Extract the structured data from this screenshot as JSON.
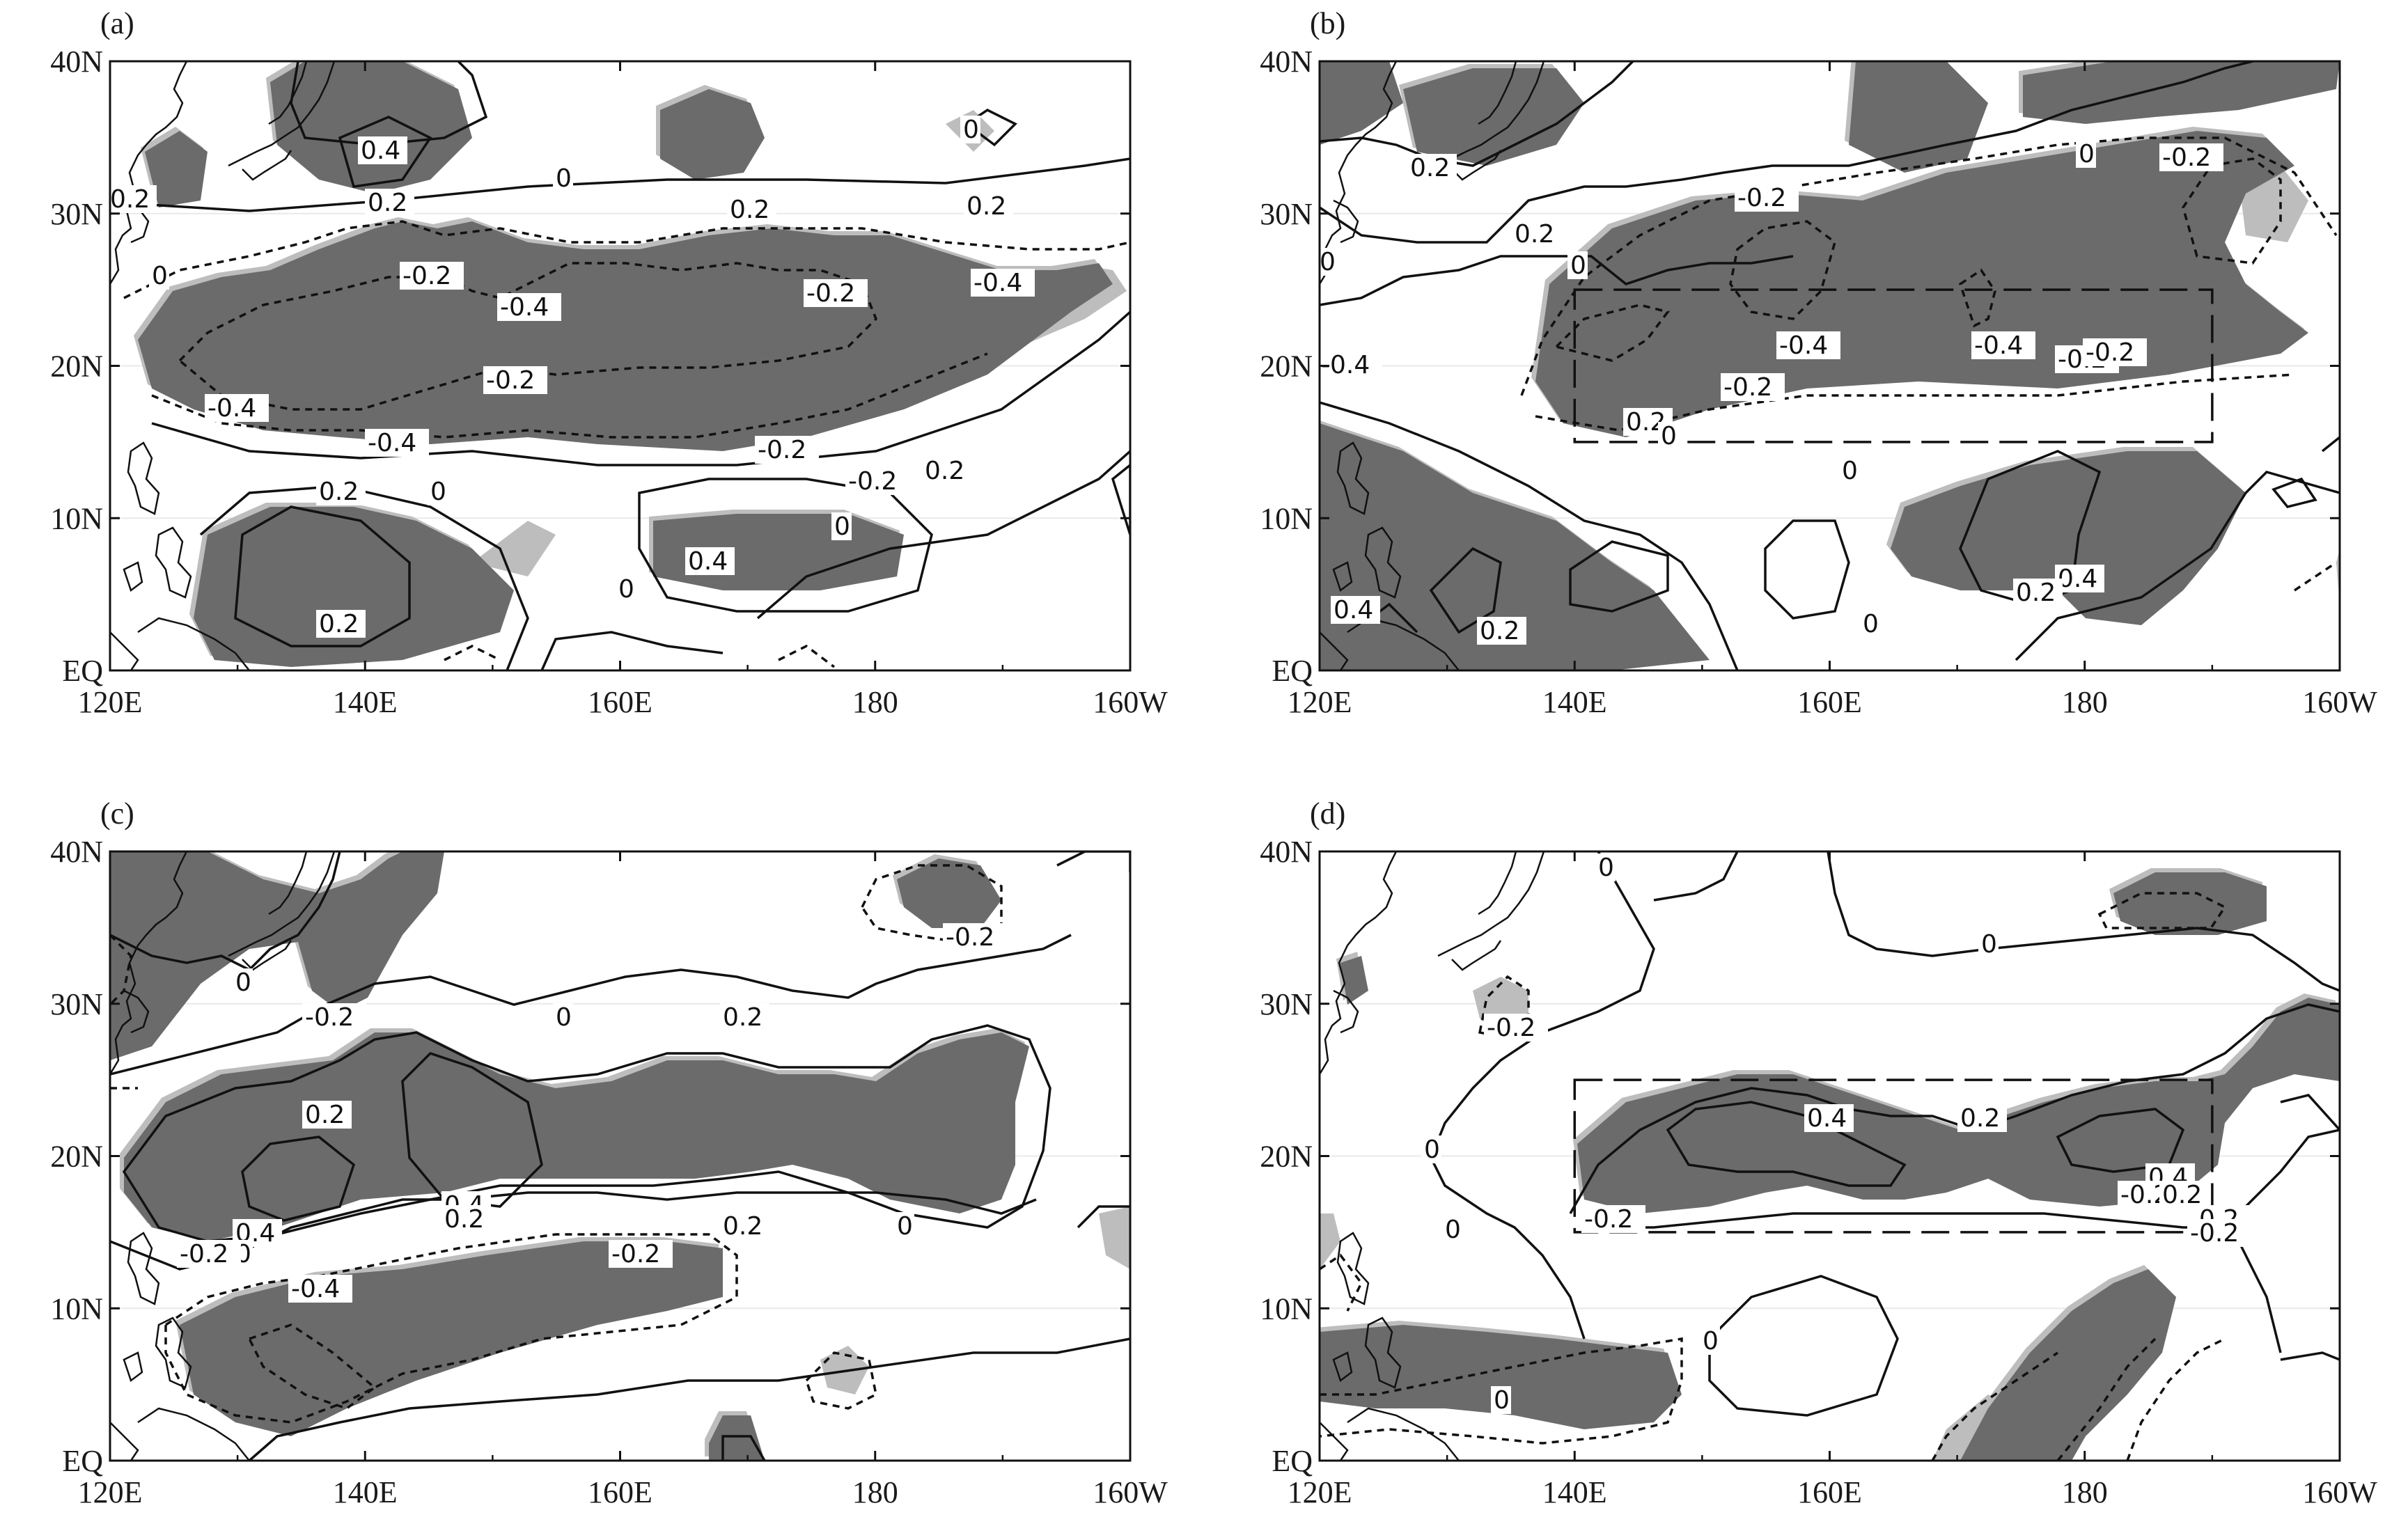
{
  "figure": {
    "panels": [
      {
        "label": "(a)"
      },
      {
        "label": "(b)"
      },
      {
        "label": "(c)"
      },
      {
        "label": "(d)"
      }
    ],
    "lon_ticks": [
      "120E",
      "140E",
      "160E",
      "180",
      "160W"
    ],
    "lat_ticks": [
      "40N",
      "30N",
      "20N",
      "10N",
      "EQ"
    ]
  },
  "colors": {
    "shade_strong": "#6b6b6b",
    "shade_weak": "#bdbdbd",
    "line": "#111111"
  },
  "chart_data": [
    {
      "type": "contour-map",
      "panel": "(a)",
      "lon_range": [
        120,
        200
      ],
      "lat_range": [
        0,
        40
      ],
      "contour_levels": [
        -0.4,
        -0.2,
        0,
        0.2,
        0.4
      ],
      "contour_labels": [
        "0.4",
        "0.2",
        "0.2",
        "0",
        "0.2",
        "0",
        "0.2",
        "0",
        "-0.2",
        "-0.4",
        "-0.2",
        "-0.4",
        "-0.2",
        "-0.4",
        "-0.4",
        "-0.2",
        "-0.2",
        "0.2",
        "0",
        "0.2",
        "0",
        "0.2",
        "0.4",
        "0"
      ]
    },
    {
      "type": "contour-map",
      "panel": "(b)",
      "lon_range": [
        120,
        200
      ],
      "lat_range": [
        0,
        40
      ],
      "contour_levels": [
        -0.4,
        -0.2,
        0,
        0.2,
        0.4
      ],
      "contour_labels": [
        "0",
        "0.2",
        "0.2",
        "0",
        "-0.2",
        "-0.2",
        "0",
        "-0.4",
        "-0.4",
        "-0.4",
        "-0.2",
        "-0.2",
        "-0.2",
        "0.2",
        "0",
        "0",
        "0",
        "0.4",
        "0.2",
        "0.2",
        "0.4",
        "0"
      ],
      "box": {
        "lon": [
          140,
          190
        ],
        "lat": [
          15,
          25
        ]
      }
    },
    {
      "type": "contour-map",
      "panel": "(c)",
      "lon_range": [
        120,
        200
      ],
      "lat_range": [
        0,
        40
      ],
      "contour_levels": [
        -0.4,
        -0.2,
        0,
        0.2,
        0.4
      ],
      "contour_labels": [
        "-0.2",
        "0",
        "-0.2",
        "0",
        "0.2",
        "0.2",
        "0.4",
        "0.4",
        "0.2",
        "0",
        "0.2",
        "0",
        "-0.2",
        "-0.2",
        "-0.4"
      ]
    },
    {
      "type": "contour-map",
      "panel": "(d)",
      "lon_range": [
        120,
        200
      ],
      "lat_range": [
        0,
        40
      ],
      "contour_levels": [
        -0.4,
        -0.2,
        0,
        0.2,
        0.4
      ],
      "contour_labels": [
        "0",
        "0",
        "-0.2",
        "0.2",
        "0.4",
        "0.4",
        "0",
        "0",
        "-0.2",
        "0.2",
        "-0.2",
        "-0.2",
        "-0.2",
        "0",
        "0"
      ],
      "box": {
        "lon": [
          140,
          190
        ],
        "lat": [
          15,
          25
        ]
      }
    }
  ]
}
